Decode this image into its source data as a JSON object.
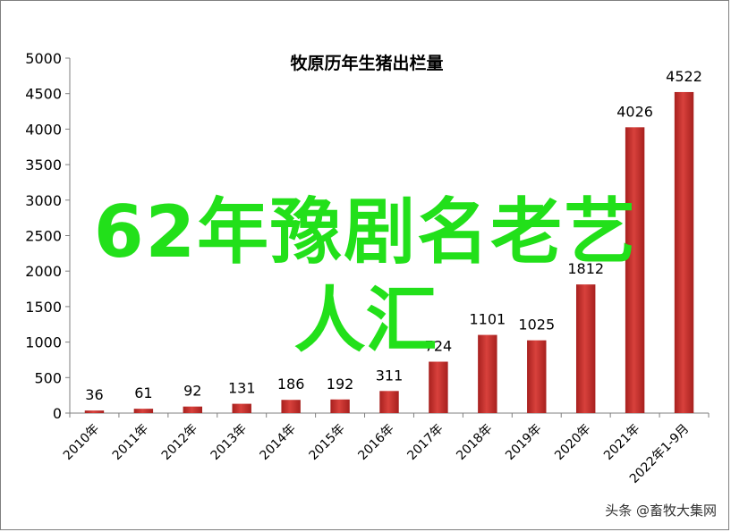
{
  "chart_data": {
    "type": "bar",
    "title": "牧原历年生猪出栏量",
    "categories": [
      "2010年",
      "2011年",
      "2012年",
      "2013年",
      "2014年",
      "2015年",
      "2016年",
      "2017年",
      "2018年",
      "2019年",
      "2020年",
      "2021年",
      "2022年1-9月"
    ],
    "values": [
      36,
      61,
      92,
      131,
      186,
      192,
      311,
      724,
      1101,
      1025,
      1812,
      4026,
      4522
    ],
    "value_labels": [
      "36",
      "61",
      "92",
      "131",
      "186",
      "192",
      "311",
      "724",
      "1101",
      "1025",
      "1812",
      "4026",
      "4522"
    ],
    "ylim": [
      0,
      5000
    ],
    "yticks": [
      "0",
      "500",
      "1000",
      "1500",
      "2000",
      "2500",
      "3000",
      "3500",
      "4000",
      "4500",
      "5000"
    ],
    "xlabel": "",
    "ylabel": "",
    "grid": false,
    "bar_color": "#c0302d"
  },
  "overlay": {
    "line1": "62年豫剧名老艺",
    "line2": "人汇"
  },
  "watermark": "头条 @畜牧大集网"
}
